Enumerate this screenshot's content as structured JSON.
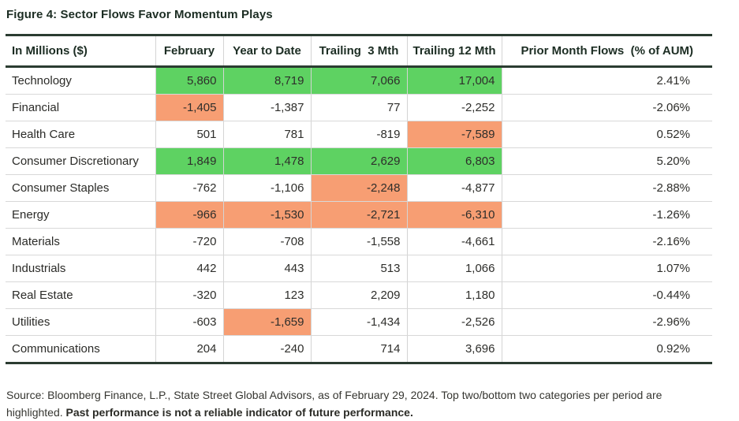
{
  "title": "Figure 4: Sector Flows Favor Momentum Plays",
  "table": {
    "columns": [
      {
        "key": "sector",
        "label": "In Millions ($)"
      },
      {
        "key": "february",
        "label": "February"
      },
      {
        "key": "year-to-date",
        "label": "Year to Date"
      },
      {
        "key": "trailing-3-mth",
        "label": "Trailing  3 Mth"
      },
      {
        "key": "trailing-12-mth",
        "label": "Trailing 12 Mth"
      },
      {
        "key": "prior-month-flows-pct-aum",
        "label": "Prior Month Flows  (% of AUM)"
      }
    ],
    "rows": [
      {
        "sector": "Technology",
        "values": [
          "5,860",
          "8,719",
          "7,066",
          "17,004",
          "2.41%"
        ],
        "highlights": [
          "green",
          "green",
          "green",
          "green",
          ""
        ]
      },
      {
        "sector": "Financial",
        "values": [
          "-1,405",
          "-1,387",
          "77",
          "-2,252",
          "-2.06%"
        ],
        "highlights": [
          "orange",
          "",
          "",
          "",
          ""
        ]
      },
      {
        "sector": "Health Care",
        "values": [
          "501",
          "781",
          "-819",
          "-7,589",
          "0.52%"
        ],
        "highlights": [
          "",
          "",
          "",
          "orange",
          ""
        ]
      },
      {
        "sector": "Consumer Discretionary",
        "values": [
          "1,849",
          "1,478",
          "2,629",
          "6,803",
          "5.20%"
        ],
        "highlights": [
          "green",
          "green",
          "green",
          "green",
          ""
        ]
      },
      {
        "sector": "Consumer Staples",
        "values": [
          "-762",
          "-1,106",
          "-2,248",
          "-4,877",
          "-2.88%"
        ],
        "highlights": [
          "",
          "",
          "orange",
          "",
          ""
        ]
      },
      {
        "sector": "Energy",
        "values": [
          "-966",
          "-1,530",
          "-2,721",
          "-6,310",
          "-1.26%"
        ],
        "highlights": [
          "orange",
          "orange",
          "orange",
          "orange",
          ""
        ]
      },
      {
        "sector": "Materials",
        "values": [
          "-720",
          "-708",
          "-1,558",
          "-4,661",
          "-2.16%"
        ],
        "highlights": [
          "",
          "",
          "",
          "",
          ""
        ]
      },
      {
        "sector": "Industrials",
        "values": [
          "442",
          "443",
          "513",
          "1,066",
          "1.07%"
        ],
        "highlights": [
          "",
          "",
          "",
          "",
          ""
        ]
      },
      {
        "sector": "Real Estate",
        "values": [
          "-320",
          "123",
          "2,209",
          "1,180",
          "-0.44%"
        ],
        "highlights": [
          "",
          "",
          "",
          "",
          ""
        ]
      },
      {
        "sector": "Utilities",
        "values": [
          "-603",
          "-1,659",
          "-1,434",
          "-2,526",
          "-2.96%"
        ],
        "highlights": [
          "",
          "orange",
          "",
          "",
          ""
        ]
      },
      {
        "sector": "Communications",
        "values": [
          "204",
          "-240",
          "714",
          "3,696",
          "0.92%"
        ],
        "highlights": [
          "",
          "",
          "",
          "",
          ""
        ]
      }
    ]
  },
  "footer": {
    "source": "Source: Bloomberg Finance, L.P., State Street Global Advisors, as of February 29, 2024. Top two/bottom two categories per period are highlighted. ",
    "disclaimer": "Past performance is not a reliable indicator of future performance."
  },
  "colors": {
    "highlight_positive": "#5ed262",
    "highlight_negative": "#f79e73",
    "table_border_dark": "#2b3c31",
    "row_divider": "#d8d8d8"
  }
}
